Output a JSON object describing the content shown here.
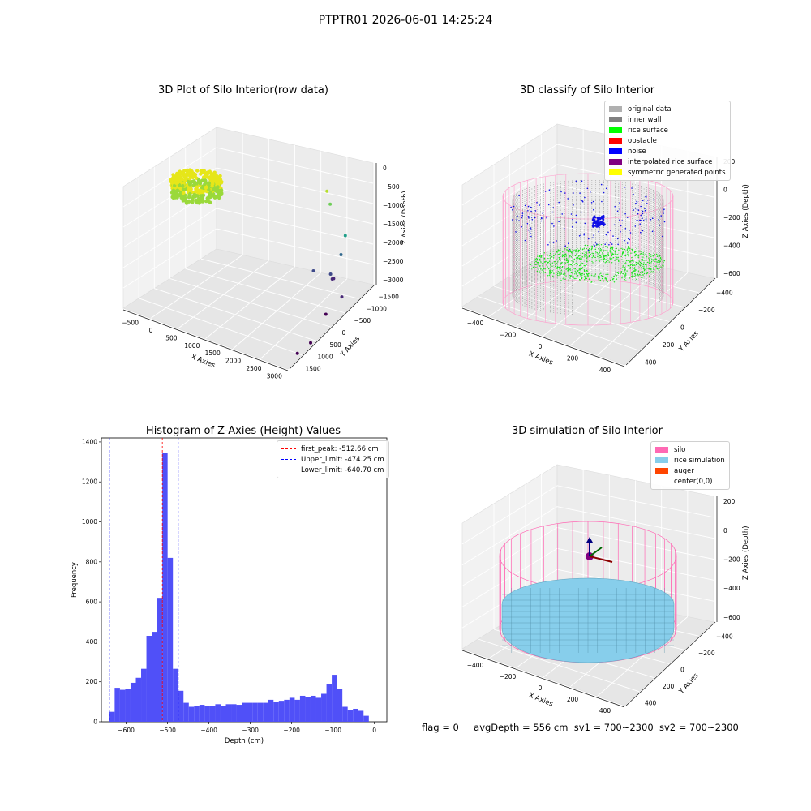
{
  "figure": {
    "suptitle": "PTPTR01 2026-06-01 14:25:24",
    "footer": {
      "flag": "flag = 0",
      "avg_depth": "avgDepth = 556 cm",
      "sv1": "sv1 = 700~2300",
      "sv2": "sv2 = 700~2300"
    }
  },
  "chart_data": [
    {
      "type": "scatter",
      "projection": "3d",
      "title": "3D Plot of Silo Interior(row data)",
      "xlabel": "X Axies",
      "ylabel": "Y Axies",
      "zlabel": "Z Axies (Depth)",
      "x_ticks": [
        "−500",
        "0",
        "500",
        "1000",
        "1500",
        "2000",
        "2500",
        "3000"
      ],
      "y_ticks": [
        "−1500",
        "−1000",
        "−500",
        "0",
        "500",
        "1000",
        "1500"
      ],
      "z_ticks": [
        "0",
        "−500",
        "−1000",
        "−1500",
        "−2000",
        "−2500",
        "−3000"
      ],
      "xlim": [
        -500,
        3000
      ],
      "ylim": [
        -1500,
        1500
      ],
      "zlim": [
        -3000,
        0
      ],
      "colormap": "viridis",
      "grid": true,
      "points": [
        {
          "x": 2100,
          "y": 1300,
          "z": -600
        },
        {
          "x": 2300,
          "y": 1100,
          "z": -750
        },
        {
          "x": 2700,
          "y": 1000,
          "z": -1400
        },
        {
          "x": 2700,
          "y": 850,
          "z": -1800
        },
        {
          "x": 2250,
          "y": 600,
          "z": -2200
        },
        {
          "x": 2500,
          "y": 800,
          "z": -2350
        },
        {
          "x": 2600,
          "y": 750,
          "z": -2400
        },
        {
          "x": 2550,
          "y": 780,
          "z": -2450
        },
        {
          "x": 3000,
          "y": 400,
          "z": -2500
        },
        {
          "x": 2900,
          "y": 0,
          "z": -2700
        },
        {
          "x": 3000,
          "y": -700,
          "z": -2900
        },
        {
          "x": 2900,
          "y": -1000,
          "z": -3000
        }
      ]
    },
    {
      "type": "scatter",
      "projection": "3d",
      "title": "3D classify of Silo Interior",
      "xlabel": "X Axies",
      "ylabel": "Y Axies",
      "zlabel": "Z Axies (Depth)",
      "x_ticks": [
        "−400",
        "−200",
        "0",
        "200",
        "400"
      ],
      "y_ticks": [
        "−400",
        "−200",
        "0",
        "200",
        "400"
      ],
      "z_ticks": [
        "200",
        "0",
        "−200",
        "−400",
        "−600"
      ],
      "xlim": [
        -500,
        500
      ],
      "ylim": [
        -500,
        500
      ],
      "zlim": [
        -700,
        250
      ],
      "grid": true,
      "legend_position": "top-right",
      "legend": [
        {
          "label": "original data",
          "color": "#b0b0b0"
        },
        {
          "label": "inner wall",
          "color": "#808080"
        },
        {
          "label": "rice surface",
          "color": "#00ff00"
        },
        {
          "label": "obstacle",
          "color": "#ff0000"
        },
        {
          "label": "noise",
          "color": "#0000ff"
        },
        {
          "label": "interpolated rice surface",
          "color": "#800080"
        },
        {
          "label": "symmetric generated points",
          "color": "#ffff00"
        }
      ],
      "silo_outline_color": "#ff9ccc"
    },
    {
      "type": "bar",
      "title": "Histogram of Z-Axies (Height) Values",
      "xlabel": "Depth (cm)",
      "ylabel": "Frequency",
      "xlim": [
        -660,
        30
      ],
      "ylim": [
        0,
        1420
      ],
      "x_ticks": [
        -600,
        -500,
        -400,
        -300,
        -200,
        -100,
        0
      ],
      "y_ticks": [
        0,
        200,
        400,
        600,
        800,
        1000,
        1200,
        1400
      ],
      "bar_color": "#5050f8",
      "bin_start": -640.7,
      "bin_width": 12.8,
      "values": [
        50,
        170,
        160,
        165,
        195,
        220,
        265,
        430,
        450,
        620,
        1345,
        820,
        265,
        155,
        95,
        75,
        80,
        85,
        80,
        80,
        88,
        80,
        88,
        88,
        85,
        95,
        95,
        95,
        95,
        95,
        110,
        100,
        105,
        110,
        120,
        110,
        130,
        125,
        130,
        120,
        140,
        190,
        235,
        165,
        75,
        60,
        65,
        55,
        30
      ],
      "legend_position": "top-right",
      "vlines": [
        {
          "label": "first_peak: -512.66 cm",
          "x": -512.66,
          "color": "#ff0000"
        },
        {
          "label": "Upper_limit: -474.25 cm",
          "x": -474.25,
          "color": "#0000ff"
        },
        {
          "label": "Lower_limit: -640.70 cm",
          "x": -640.7,
          "color": "#0000ff"
        }
      ]
    },
    {
      "type": "surface",
      "projection": "3d",
      "title": "3D simulation of Silo Interior",
      "xlabel": "X Axies",
      "ylabel": "Y Axies",
      "zlabel": "Z Axies (Depth)",
      "x_ticks": [
        "−400",
        "−200",
        "0",
        "200",
        "400"
      ],
      "y_ticks": [
        "−400",
        "−200",
        "0",
        "200",
        "400"
      ],
      "z_ticks": [
        "200",
        "0",
        "−200",
        "−400",
        "−600"
      ],
      "xlim": [
        -500,
        500
      ],
      "ylim": [
        -500,
        500
      ],
      "zlim": [
        -700,
        250
      ],
      "grid": true,
      "legend_position": "top-right",
      "legend": [
        {
          "label": "silo",
          "color": "#ff69b4"
        },
        {
          "label": "rice simulation",
          "color": "#87ceeb"
        },
        {
          "label": "auger",
          "color": "#ff4500"
        },
        {
          "label": "center(0,0)",
          "color": ""
        }
      ]
    }
  ]
}
